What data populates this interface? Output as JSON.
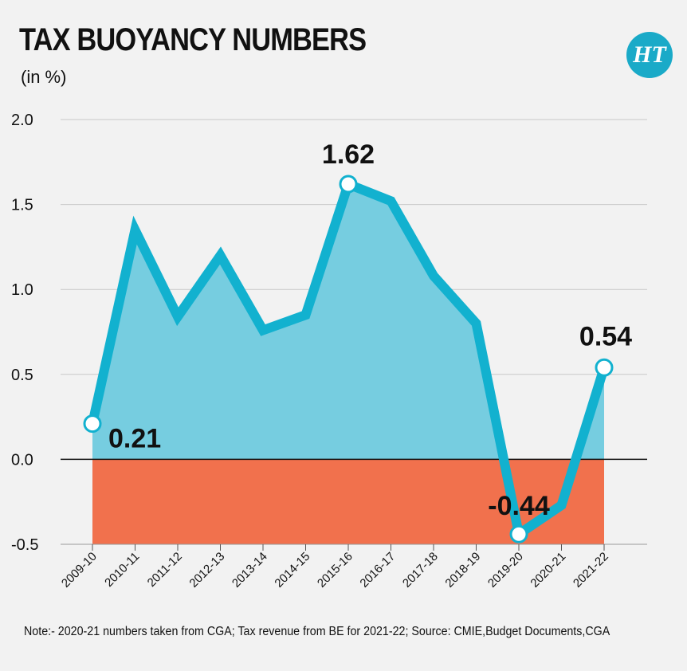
{
  "chart_data": {
    "type": "area",
    "title": "TAX BUOYANCY NUMBERS",
    "subtitle": "(in %)",
    "categories": [
      "2009-10",
      "2010-11",
      "2011-12",
      "2012-13",
      "2013-14",
      "2014-15",
      "2015-16",
      "2016-17",
      "2017-18",
      "2018-19",
      "2019-20",
      "2020-21",
      "2021-22"
    ],
    "values": [
      0.21,
      1.35,
      0.84,
      1.2,
      0.76,
      0.85,
      1.62,
      1.52,
      1.08,
      0.8,
      -0.44,
      -0.27,
      0.54
    ],
    "ylim": [
      -0.5,
      2.0
    ],
    "yticks": [
      "2.0",
      "1.5",
      "1.0",
      "0.5",
      "0.0",
      "-0.5"
    ],
    "ytick_values": [
      2.0,
      1.5,
      1.0,
      0.5,
      0.0,
      -0.5
    ],
    "grid": true,
    "annotations": [
      {
        "index": 0,
        "text": "0.21"
      },
      {
        "index": 6,
        "text": "1.62"
      },
      {
        "index": 10,
        "text": "-0.44"
      },
      {
        "index": 12,
        "text": "0.54"
      }
    ],
    "colors": {
      "line": "#12b1cf",
      "positive_fill": "#76cde0",
      "negative_fill": "#f1714d",
      "grid": "#c8c8c8",
      "zero_line": "#111111"
    }
  },
  "logo_text": "HT",
  "note": "Note:- 2020-21 numbers taken from CGA; Tax revenue from BE for 2021-22;  Source: CMIE,Budget Documents,CGA"
}
